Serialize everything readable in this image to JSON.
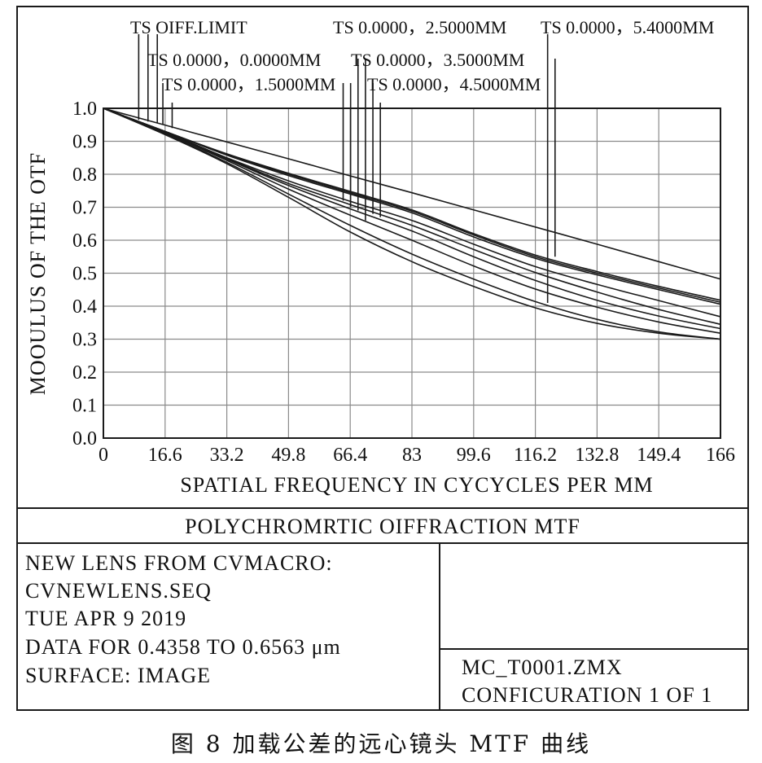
{
  "chart_data": {
    "type": "line",
    "xlabel": "SPATIAL FREQUENCY IN CYCYCLES PER MM",
    "ylabel": "MOOULUS OF THE OTF",
    "xlim": [
      0,
      166
    ],
    "ylim": [
      0,
      1.0
    ],
    "x_ticks": [
      "0",
      "16.6",
      "33.2",
      "49.8",
      "66.4",
      "83",
      "99.6",
      "116.2",
      "132.8",
      "149.4",
      "166"
    ],
    "y_ticks": [
      "0.0",
      "0.1",
      "0.2",
      "0.3",
      "0.4",
      "0.5",
      "0.6",
      "0.7",
      "0.8",
      "0.9",
      "1.0"
    ],
    "grid": true,
    "x": [
      0,
      16.6,
      33.2,
      49.8,
      66.4,
      83,
      99.6,
      116.2,
      132.8,
      149.4,
      166
    ],
    "series": [
      {
        "name": "TS OIFF.LIMIT",
        "values": [
          1.0,
          0.949,
          0.898,
          0.847,
          0.795,
          0.744,
          0.692,
          0.64,
          0.588,
          0.535,
          0.482
        ]
      },
      {
        "name": "TS 0.0000，0.0000MM",
        "values": [
          1.0,
          0.93,
          0.862,
          0.803,
          0.748,
          0.692,
          0.62,
          0.555,
          0.505,
          0.46,
          0.418
        ]
      },
      {
        "name": "TS 0.0000，1.5000MM",
        "values": [
          1.0,
          0.93,
          0.86,
          0.8,
          0.744,
          0.688,
          0.616,
          0.55,
          0.5,
          0.455,
          0.412
        ]
      },
      {
        "name": "TS 0.0000，2.5000MM",
        "values": [
          1.0,
          0.93,
          0.858,
          0.796,
          0.74,
          0.683,
          0.61,
          0.545,
          0.495,
          0.45,
          0.406
        ]
      },
      {
        "name": "TS 0.0000，3.5000MM",
        "values": [
          1.0,
          0.928,
          0.85,
          0.78,
          0.718,
          0.66,
          0.588,
          0.52,
          0.466,
          0.417,
          0.368
        ]
      },
      {
        "name": "TS 0.0000，4.5000MM",
        "values": [
          1.0,
          0.928,
          0.848,
          0.772,
          0.708,
          0.645,
          0.572,
          0.502,
          0.443,
          0.39,
          0.345
        ]
      },
      {
        "name": "TS 0.0000，5.4000MM",
        "values": [
          1.0,
          0.926,
          0.846,
          0.766,
          0.695,
          0.628,
          0.55,
          0.478,
          0.418,
          0.37,
          0.332
        ]
      },
      {
        "name": "",
        "values": [
          1.0,
          0.925,
          0.842,
          0.755,
          0.676,
          0.6,
          0.522,
          0.452,
          0.397,
          0.352,
          0.318
        ]
      },
      {
        "name": "",
        "values": [
          1.0,
          0.922,
          0.836,
          0.74,
          0.645,
          0.558,
          0.482,
          0.414,
          0.36,
          0.322,
          0.3
        ]
      },
      {
        "name": "",
        "values": [
          1.0,
          0.92,
          0.832,
          0.73,
          0.625,
          0.535,
          0.46,
          0.395,
          0.348,
          0.318,
          0.3
        ]
      }
    ],
    "field_labels": [
      {
        "text": "TS OIFF.LIMIT",
        "x": 9.5,
        "y": 0.965
      },
      {
        "text": "TS 0.0000，0.0000MM",
        "x": 12.0,
        "y": 0.96
      },
      {
        "text": "TS 0.0000，1.5000MM",
        "x": 16.0,
        "y": 0.95
      },
      {
        "text": "TS 0.0000，2.5000MM",
        "x": 64.5,
        "y": 0.72
      },
      {
        "text": "TS 0.0000，3.5000MM",
        "x": 66.5,
        "y": 0.7
      },
      {
        "text": "TS 0.0000，4.5000MM",
        "x": 72.5,
        "y": 0.68
      },
      {
        "text": "TS 0.0000，5.4000MM",
        "x": 119.5,
        "y": 0.41
      },
      {
        "text": "",
        "x": 14.5,
        "y": 0.955
      },
      {
        "text": "",
        "x": 18.5,
        "y": 0.94
      },
      {
        "text": "",
        "x": 68.5,
        "y": 0.69
      },
      {
        "text": "",
        "x": 70.5,
        "y": 0.66
      },
      {
        "text": "",
        "x": 74.5,
        "y": 0.67
      },
      {
        "text": "",
        "x": 121.5,
        "y": 0.55
      }
    ]
  },
  "title_box": {
    "title": "POLYCHROMRTIC OIFFRACTION MTF"
  },
  "info_box": {
    "line1": "NEW LENS FROM CVMACRO:",
    "line2": "CVNEWLENS.SEQ",
    "line3": "TUE APR 9 2019",
    "line4": "DATA FOR 0.4358 TO 0.6563 μm",
    "line5": "SURFACE: IMAGE",
    "file_name": "MC_T0001.ZMX",
    "configuration": "CONFICURATION 1 OF 1"
  },
  "caption": "图 8  加载公差的远心镜头 MTF 曲线"
}
